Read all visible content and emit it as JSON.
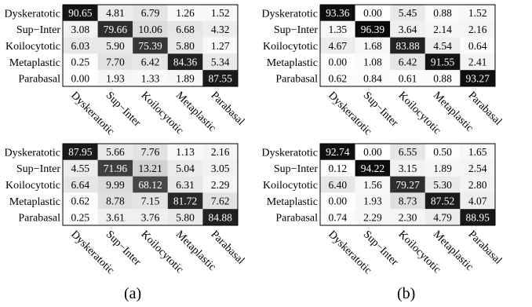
{
  "chart_data": [
    {
      "type": "heatmap",
      "rows": [
        "Dyskeratotic",
        "Sup−Inter",
        "Koilocytotic",
        "Metaplastic",
        "Parabasal"
      ],
      "columns": [
        "Dyskeratotic",
        "Sup−Inter",
        "Koilocytotic",
        "Metaplastic",
        "Parabasal"
      ],
      "values": [
        [
          90.65,
          4.81,
          6.79,
          1.26,
          1.52
        ],
        [
          3.08,
          79.66,
          10.06,
          6.68,
          4.32
        ],
        [
          6.03,
          5.9,
          75.39,
          5.8,
          1.27
        ],
        [
          0.25,
          7.7,
          6.42,
          84.36,
          5.34
        ],
        [
          0.0,
          1.93,
          1.33,
          1.89,
          87.55
        ]
      ]
    },
    {
      "type": "heatmap",
      "rows": [
        "Dyskeratotic",
        "Sup−Inter",
        "Koilocytotic",
        "Metaplastic",
        "Parabasal"
      ],
      "columns": [
        "Dyskeratotic",
        "Sup−Inter",
        "Koilocytotic",
        "Metaplastic",
        "Parabasal"
      ],
      "values": [
        [
          93.36,
          0.0,
          5.45,
          0.88,
          1.52
        ],
        [
          1.35,
          96.39,
          3.64,
          2.14,
          2.16
        ],
        [
          4.67,
          1.68,
          83.88,
          4.54,
          0.64
        ],
        [
          0.0,
          1.08,
          6.42,
          91.55,
          2.41
        ],
        [
          0.62,
          0.84,
          0.61,
          0.88,
          93.27
        ]
      ]
    },
    {
      "type": "heatmap",
      "rows": [
        "Dyskeratotic",
        "Sup−Inter",
        "Koilocytotic",
        "Metaplastic",
        "Parabasal"
      ],
      "columns": [
        "Dyskeratotic",
        "Sup−Inter",
        "Koilocytotic",
        "Metaplastic",
        "Parabasal"
      ],
      "values": [
        [
          87.95,
          5.66,
          7.76,
          1.13,
          2.16
        ],
        [
          4.55,
          71.96,
          13.21,
          5.04,
          3.05
        ],
        [
          6.64,
          9.99,
          68.12,
          6.31,
          2.29
        ],
        [
          0.62,
          8.78,
          7.15,
          81.72,
          7.62
        ],
        [
          0.25,
          3.61,
          3.76,
          5.8,
          84.88
        ]
      ]
    },
    {
      "type": "heatmap",
      "rows": [
        "Dyskeratotic",
        "Sup−Inter",
        "Koilocytotic",
        "Metaplastic",
        "Parabasal"
      ],
      "columns": [
        "Dyskeratotic",
        "Sup−Inter",
        "Koilocytotic",
        "Metaplastic",
        "Parabasal"
      ],
      "values": [
        [
          92.74,
          0.0,
          6.55,
          0.5,
          1.65
        ],
        [
          0.12,
          94.22,
          3.15,
          1.89,
          2.54
        ],
        [
          6.4,
          1.56,
          79.27,
          5.3,
          2.8
        ],
        [
          0.0,
          1.93,
          8.73,
          87.52,
          4.07
        ],
        [
          0.74,
          2.29,
          2.3,
          4.79,
          88.95
        ]
      ]
    }
  ],
  "captions": {
    "a": "(a)",
    "b": "(b)"
  },
  "colors": {
    "high": "#000000",
    "low": "#ffffff",
    "text_dark": "#000000",
    "text_light": "#ffffff"
  }
}
